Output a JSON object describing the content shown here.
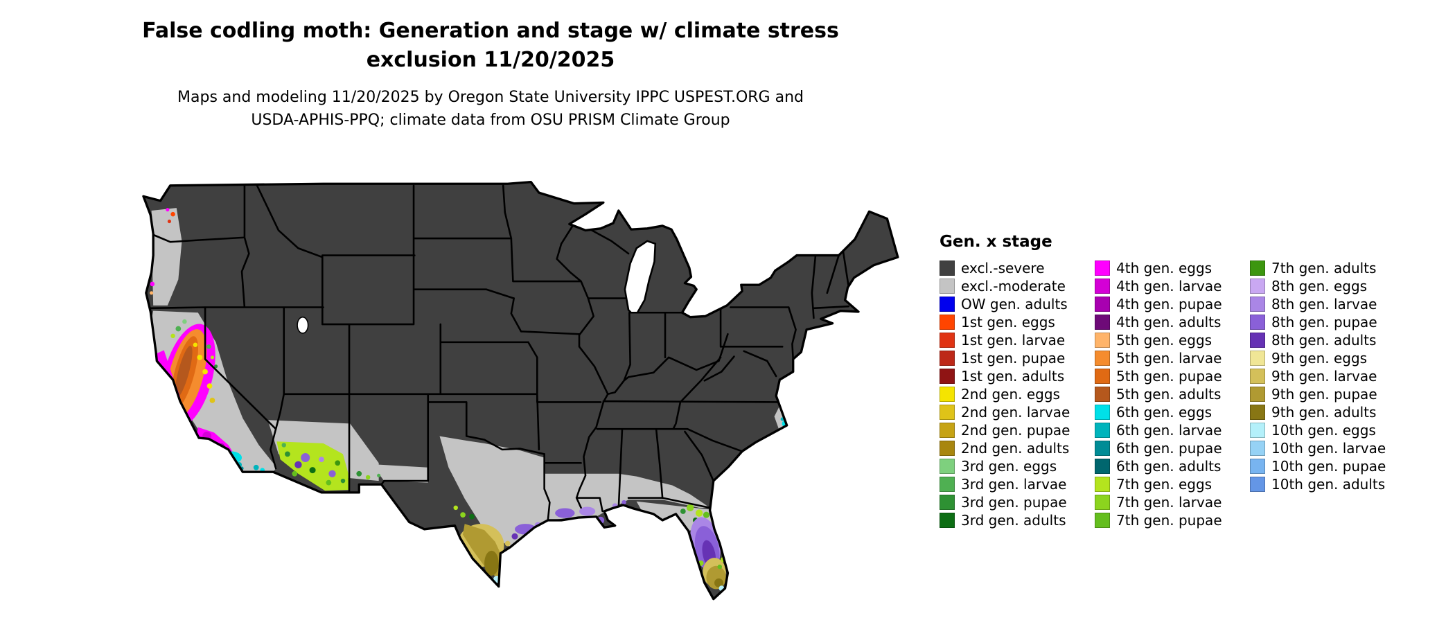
{
  "title": {
    "line1": "False codling moth: Generation and stage w/ climate stress",
    "line2": "exclusion 11/20/2025"
  },
  "subtitle": {
    "line1": "Maps and modeling 11/20/2025 by Oregon State University IPPC USPEST.ORG and",
    "line2": "USDA-APHIS-PPQ; climate data from OSU PRISM Climate Group"
  },
  "legend": {
    "title": "Gen. x stage",
    "column_counts": [
      15,
      15,
      13
    ],
    "items": [
      {
        "label": "excl.-severe",
        "color": "#404040"
      },
      {
        "label": "excl.-moderate",
        "color": "#c4c4c4"
      },
      {
        "label": "OW gen. adults",
        "color": "#0000ee"
      },
      {
        "label": "1st gen. eggs",
        "color": "#ff4500"
      },
      {
        "label": "1st gen. larvae",
        "color": "#e03414"
      },
      {
        "label": "1st gen. pupae",
        "color": "#bd2818"
      },
      {
        "label": "1st gen. adults",
        "color": "#8f1414"
      },
      {
        "label": "2nd gen. eggs",
        "color": "#f5e400"
      },
      {
        "label": "2nd gen. larvae",
        "color": "#dfc318"
      },
      {
        "label": "2nd gen. pupae",
        "color": "#c6a314"
      },
      {
        "label": "2nd gen. adults",
        "color": "#a8860f"
      },
      {
        "label": "3rd gen. eggs",
        "color": "#7ed07e"
      },
      {
        "label": "3rd gen. larvae",
        "color": "#4fb052"
      },
      {
        "label": "3rd gen. pupae",
        "color": "#2e9133"
      },
      {
        "label": "3rd gen. adults",
        "color": "#0d6e14"
      },
      {
        "label": "4th gen. eggs",
        "color": "#ff00ff"
      },
      {
        "label": "4th gen. larvae",
        "color": "#d400d6"
      },
      {
        "label": "4th gen. pupae",
        "color": "#a800b0"
      },
      {
        "label": "4th gen. adults",
        "color": "#6e0a78"
      },
      {
        "label": "5th gen. eggs",
        "color": "#ffb469"
      },
      {
        "label": "5th gen. larvae",
        "color": "#f58c2e"
      },
      {
        "label": "5th gen. pupae",
        "color": "#e06a14"
      },
      {
        "label": "5th gen. adults",
        "color": "#b5581d"
      },
      {
        "label": "6th gen. eggs",
        "color": "#00e0e8"
      },
      {
        "label": "6th gen. larvae",
        "color": "#00b4bc"
      },
      {
        "label": "6th gen. pupae",
        "color": "#008c96"
      },
      {
        "label": "6th gen. adults",
        "color": "#00666e"
      },
      {
        "label": "7th gen. eggs",
        "color": "#b4e41e"
      },
      {
        "label": "7th gen. larvae",
        "color": "#8cd41e"
      },
      {
        "label": "7th gen. pupae",
        "color": "#64be1e"
      },
      {
        "label": "7th gen. adults",
        "color": "#3c960f"
      },
      {
        "label": "8th gen. eggs",
        "color": "#c9a8f2"
      },
      {
        "label": "8th gen. larvae",
        "color": "#aa86e6"
      },
      {
        "label": "8th gen. pupae",
        "color": "#8a60d8"
      },
      {
        "label": "8th gen. adults",
        "color": "#6632b4"
      },
      {
        "label": "9th gen. eggs",
        "color": "#f0e696"
      },
      {
        "label": "9th gen. larvae",
        "color": "#d4c05a"
      },
      {
        "label": "9th gen. pupae",
        "color": "#b09a32"
      },
      {
        "label": "9th gen. adults",
        "color": "#887614"
      },
      {
        "label": "10th gen. eggs",
        "color": "#b4f0fa"
      },
      {
        "label": "10th gen. larvae",
        "color": "#96d2f5"
      },
      {
        "label": "10th gen. pupae",
        "color": "#78b4f0"
      },
      {
        "label": "10th gen. adults",
        "color": "#6496e6"
      }
    ]
  },
  "map": {
    "background": "#ffffff",
    "water": "#ffffff",
    "state_border_color": "#000000"
  }
}
